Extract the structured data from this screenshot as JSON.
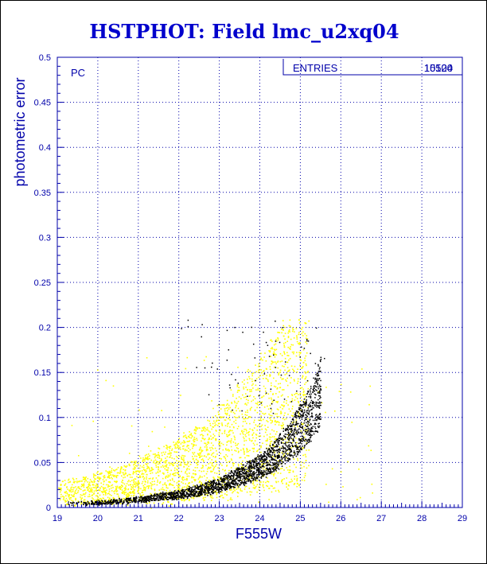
{
  "chart_data": {
    "type": "scatter",
    "title": "HSTPHOT: Field lmc_u2xq04",
    "xlabel": "F555W",
    "ylabel": "photometric error",
    "xlim": [
      19,
      29
    ],
    "ylim": [
      0,
      0.5
    ],
    "x_ticks": [
      "19",
      "20",
      "21",
      "22",
      "23",
      "24",
      "25",
      "26",
      "27",
      "28",
      "29"
    ],
    "y_ticks": [
      "0",
      "0.05",
      "0.1",
      "0.15",
      "0.2",
      "0.25",
      "0.3",
      "0.35",
      "0.4",
      "0.45",
      "0.5"
    ],
    "grid": true,
    "panel_label": "PC",
    "stats_box": {
      "label": "ENTRIES",
      "value_1": "10524",
      "value_2": "15100"
    },
    "colors": {
      "axes": "#0000aa",
      "grid": "#0000aa",
      "title": "#0000cc",
      "series_black": "#000000",
      "series_yellow": "#ffff00"
    },
    "series": [
      {
        "color": "#ffff00",
        "trend": {
          "x": [
            19.0,
            20.0,
            21.0,
            22.0,
            22.5,
            23.0,
            23.5,
            24.0,
            24.5,
            25.0
          ],
          "y": [
            0.02,
            0.025,
            0.035,
            0.05,
            0.06,
            0.075,
            0.09,
            0.11,
            0.13,
            0.16
          ]
        }
      },
      {
        "color": "#000000",
        "trend": {
          "x": [
            19.0,
            20.0,
            21.0,
            22.0,
            22.5,
            23.0,
            23.5,
            24.0,
            24.3,
            24.6,
            24.9,
            25.2,
            25.5
          ],
          "y": [
            0.005,
            0.006,
            0.01,
            0.016,
            0.021,
            0.028,
            0.038,
            0.05,
            0.06,
            0.075,
            0.09,
            0.11,
            0.14
          ]
        }
      }
    ]
  }
}
